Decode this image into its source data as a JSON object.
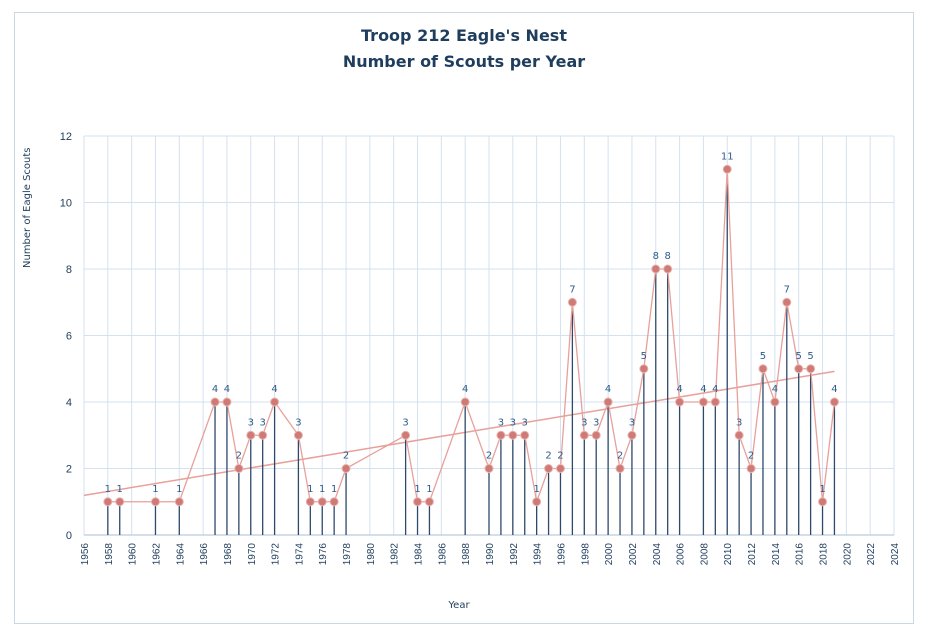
{
  "chart_data": {
    "type": "scatter",
    "title": "Troop 212 Eagle's Nest",
    "subtitle": "Number of Scouts per Year",
    "xlabel": "Year",
    "ylabel": "Number of Eagle Scouts",
    "xlim": [
      1956,
      2024
    ],
    "ylim": [
      0,
      12
    ],
    "x_ticks": [
      1956,
      1958,
      1960,
      1962,
      1964,
      1966,
      1968,
      1970,
      1972,
      1974,
      1976,
      1978,
      1980,
      1982,
      1984,
      1986,
      1988,
      1990,
      1992,
      1994,
      1996,
      1998,
      2000,
      2002,
      2004,
      2006,
      2008,
      2010,
      2012,
      2014,
      2016,
      2018,
      2020,
      2022,
      2024
    ],
    "y_ticks": [
      0,
      2,
      4,
      6,
      8,
      10,
      12
    ],
    "grid": true,
    "trendline": true,
    "series": [
      {
        "x": [
          1958,
          1959,
          1962,
          1964,
          1967,
          1968,
          1969,
          1970,
          1971,
          1972,
          1974,
          1975,
          1976,
          1977,
          1978,
          1983,
          1984,
          1985,
          1988,
          1990,
          1991,
          1992,
          1993,
          1994,
          1995,
          1996,
          1997,
          1998,
          1999,
          2000,
          2001,
          2002,
          2003,
          2004,
          2005,
          2006,
          2008,
          2009,
          2010,
          2011,
          2012,
          2013,
          2014,
          2015,
          2016,
          2017,
          2018,
          2019
        ],
        "y": [
          1,
          1,
          1,
          1,
          4,
          4,
          2,
          3,
          3,
          4,
          3,
          1,
          1,
          1,
          2,
          3,
          1,
          1,
          4,
          2,
          3,
          3,
          3,
          1,
          2,
          2,
          7,
          3,
          3,
          4,
          2,
          3,
          5,
          8,
          8,
          4,
          4,
          4,
          11,
          3,
          2,
          5,
          4,
          7,
          5,
          5,
          1,
          4
        ]
      }
    ],
    "colors": {
      "line": "#e8a09a",
      "marker": "#cf7a76",
      "stem": "#2e4a6b",
      "label": "#2e5c8a",
      "grid": "#d4e1ef"
    }
  }
}
